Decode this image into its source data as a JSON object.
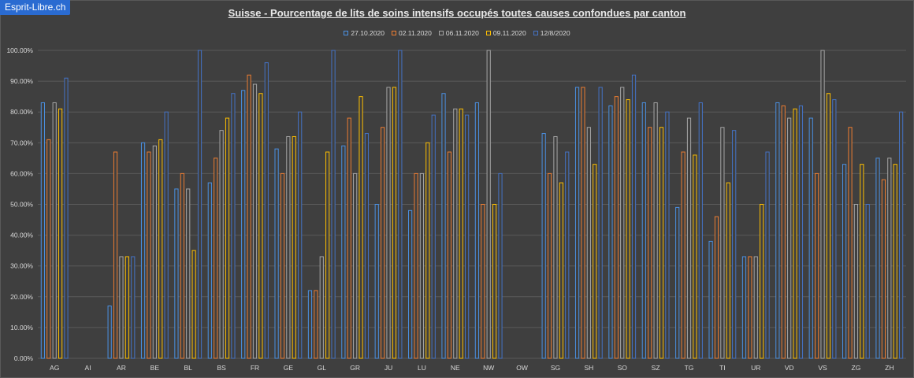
{
  "brand": "Esprit-Libre.ch",
  "chart_data": {
    "type": "bar",
    "title": "Suisse - Pourcentage de lits de soins intensifs occupés toutes causes confondues par canton",
    "xlabel": "",
    "ylabel": "",
    "ylim": [
      0,
      1
    ],
    "yticks": [
      "0.00%",
      "10.00%",
      "20.00%",
      "30.00%",
      "40.00%",
      "50.00%",
      "60.00%",
      "70.00%",
      "80.00%",
      "90.00%",
      "100.00%"
    ],
    "grid": true,
    "legend_position": "top",
    "categories": [
      "AG",
      "AI",
      "AR",
      "BE",
      "BL",
      "BS",
      "FR",
      "GE",
      "GL",
      "GR",
      "JU",
      "LU",
      "NE",
      "NW",
      "OW",
      "SG",
      "SH",
      "SO",
      "SZ",
      "TG",
      "TI",
      "UR",
      "VD",
      "VS",
      "ZG",
      "ZH"
    ],
    "series": [
      {
        "name": "27.10.2020",
        "color": "#4a90e2",
        "values": [
          0.83,
          null,
          0.17,
          0.7,
          0.55,
          0.57,
          0.87,
          0.68,
          0.22,
          0.69,
          0.5,
          0.48,
          0.86,
          0.83,
          null,
          0.73,
          0.88,
          0.82,
          0.83,
          0.49,
          0.38,
          0.33,
          0.83,
          0.78,
          0.63,
          0.65
        ]
      },
      {
        "name": "02.11.2020",
        "color": "#ed7d31",
        "values": [
          0.71,
          null,
          0.67,
          0.67,
          0.6,
          0.65,
          0.92,
          0.6,
          0.22,
          0.78,
          0.75,
          0.6,
          0.67,
          0.5,
          null,
          0.6,
          0.88,
          0.85,
          0.75,
          0.67,
          0.46,
          0.33,
          0.82,
          0.6,
          0.75,
          0.58
        ]
      },
      {
        "name": "06.11.2020",
        "color": "#a5a5a5",
        "values": [
          0.83,
          null,
          0.33,
          0.69,
          0.55,
          0.74,
          0.89,
          0.72,
          0.33,
          0.6,
          0.88,
          0.6,
          0.81,
          1.0,
          null,
          0.72,
          0.75,
          0.88,
          0.83,
          0.78,
          0.75,
          0.33,
          0.78,
          1.0,
          0.5,
          0.65
        ]
      },
      {
        "name": "09.11.2020",
        "color": "#ffc000",
        "values": [
          0.81,
          null,
          0.33,
          0.71,
          0.35,
          0.78,
          0.86,
          0.72,
          0.67,
          0.85,
          0.88,
          0.7,
          0.81,
          0.5,
          null,
          0.57,
          0.63,
          0.84,
          0.75,
          0.66,
          0.57,
          0.5,
          0.81,
          0.86,
          0.63,
          0.63
        ]
      },
      {
        "name": "12/8/2020",
        "color": "#4472c4",
        "values": [
          0.91,
          null,
          0.33,
          0.8,
          1.0,
          0.86,
          0.96,
          0.8,
          1.0,
          0.73,
          1.0,
          0.79,
          0.79,
          0.6,
          null,
          0.67,
          0.88,
          0.92,
          0.8,
          0.83,
          0.74,
          0.67,
          0.82,
          0.84,
          0.5,
          0.8
        ]
      }
    ]
  }
}
